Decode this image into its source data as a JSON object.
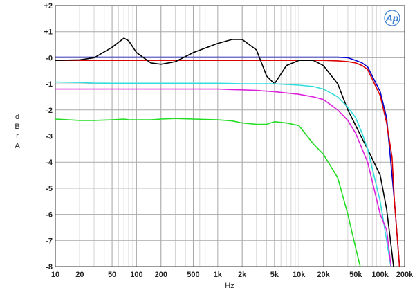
{
  "chart_data": {
    "type": "line",
    "xlabel": "Hz",
    "ylabel": "dBr A",
    "logo": "Ap",
    "xscale": "log",
    "grid": true,
    "minor_grid": true,
    "xlim": [
      10,
      200000
    ],
    "ylim": [
      -8,
      2
    ],
    "xticks": [
      10,
      20,
      50,
      100,
      200,
      500,
      {
        "value": 1000,
        "label": "1k"
      },
      {
        "value": 2000,
        "label": "2k"
      },
      {
        "value": 5000,
        "label": "5k"
      },
      {
        "value": 10000,
        "label": "10k"
      },
      {
        "value": 20000,
        "label": "20k"
      },
      {
        "value": 50000,
        "label": "50k"
      },
      {
        "value": 100000,
        "label": "100k"
      },
      {
        "value": 200000,
        "label": "200k"
      }
    ],
    "yticks": [
      {
        "value": 2,
        "label": "+2"
      },
      {
        "value": 1,
        "label": "+1"
      },
      {
        "value": 0,
        "label": "-0"
      },
      -1,
      -2,
      -3,
      -4,
      -5,
      -6,
      -7,
      -8
    ],
    "x": [
      10,
      20,
      30,
      50,
      70,
      80,
      100,
      150,
      200,
      300,
      500,
      1000,
      1500,
      2000,
      3000,
      4000,
      5000,
      7000,
      10000,
      15000,
      20000,
      30000,
      40000,
      50000,
      60000,
      70000,
      100000,
      120000,
      140000,
      150000,
      175000,
      200000
    ],
    "series": [
      {
        "color": "#0000cc",
        "values": [
          0.02,
          0.02,
          0.02,
          0.02,
          0.02,
          0.02,
          0.02,
          0.02,
          0.02,
          0.02,
          0.02,
          0.02,
          0.02,
          0.02,
          0.02,
          0.02,
          0.02,
          0.02,
          0.02,
          0.02,
          0.02,
          0.02,
          0,
          -0.1,
          -0.2,
          -0.35,
          -1.3,
          -2.3,
          -4.5,
          -5.5,
          -8.2,
          null
        ]
      },
      {
        "color": "#dd0000",
        "values": [
          -0.1,
          -0.1,
          -0.1,
          -0.1,
          -0.1,
          -0.1,
          -0.1,
          -0.1,
          -0.1,
          -0.1,
          -0.1,
          -0.1,
          -0.1,
          -0.1,
          -0.1,
          -0.1,
          -0.1,
          -0.1,
          -0.1,
          -0.1,
          -0.1,
          -0.12,
          -0.15,
          -0.2,
          -0.3,
          -0.45,
          -1.45,
          -2.5,
          -3.8,
          -5.5,
          -8.2,
          null
        ]
      },
      {
        "color": "#000000",
        "values": [
          -0.1,
          -0.08,
          0,
          0.4,
          0.75,
          0.65,
          0.2,
          -0.2,
          -0.25,
          -0.15,
          0.2,
          0.55,
          0.7,
          0.7,
          0.3,
          -0.7,
          -1.0,
          -0.3,
          -0.1,
          -0.1,
          -0.3,
          -1.0,
          -2.0,
          -2.6,
          -3.1,
          -3.5,
          -4.5,
          -5.8,
          -7.5,
          -8.3,
          null,
          null
        ]
      },
      {
        "color": "#33dddd",
        "values": [
          -0.93,
          -0.95,
          -0.97,
          -0.98,
          -0.98,
          -0.98,
          -0.98,
          -0.98,
          -0.98,
          -0.98,
          -0.98,
          -0.98,
          -0.99,
          -1.0,
          -1.0,
          -1.0,
          -1.0,
          -1.02,
          -1.05,
          -1.1,
          -1.2,
          -1.5,
          -1.9,
          -2.3,
          -2.9,
          -3.5,
          -5.5,
          -7.0,
          -8.3,
          null,
          null,
          null
        ]
      },
      {
        "color": "#dd22dd",
        "values": [
          -1.2,
          -1.2,
          -1.2,
          -1.2,
          -1.2,
          -1.2,
          -1.2,
          -1.2,
          -1.2,
          -1.2,
          -1.2,
          -1.2,
          -1.22,
          -1.23,
          -1.25,
          -1.28,
          -1.3,
          -1.35,
          -1.4,
          -1.5,
          -1.6,
          -2.0,
          -2.4,
          -2.9,
          -3.5,
          -4.0,
          -6.0,
          -6.6,
          -8.3,
          null,
          null,
          null
        ]
      },
      {
        "color": "#22dd22",
        "values": [
          -2.35,
          -2.4,
          -2.4,
          -2.38,
          -2.35,
          -2.38,
          -2.38,
          -2.38,
          -2.35,
          -2.33,
          -2.35,
          -2.38,
          -2.42,
          -2.5,
          -2.55,
          -2.55,
          -2.45,
          -2.5,
          -2.6,
          -3.3,
          -3.7,
          -4.6,
          -6.0,
          -7.3,
          -8.3,
          null,
          null,
          null,
          null,
          null,
          null,
          null
        ]
      }
    ]
  }
}
